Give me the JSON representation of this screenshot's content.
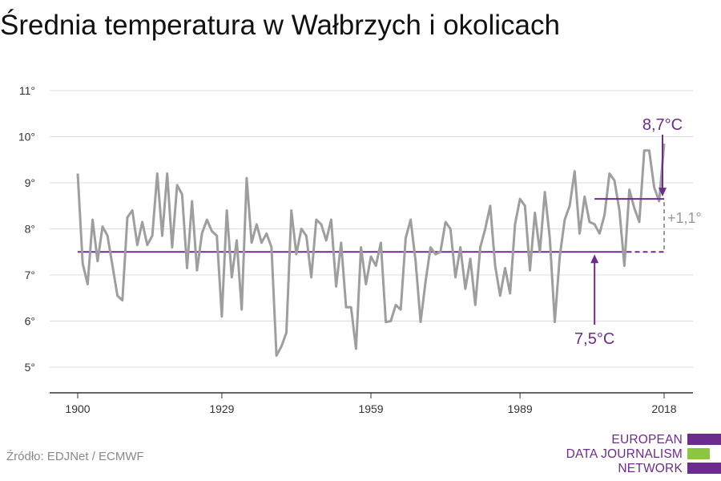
{
  "title": "Średnia temperatura w Wałbrzych i okolicach",
  "source": "Źródło: EDJNet / ECMWF",
  "logo": {
    "lines": [
      "EUROPEAN",
      "DATA JOURNALISM",
      "NETWORK"
    ],
    "colors": {
      "purple": "#6b2c8e",
      "green": "#8cc63f"
    }
  },
  "colors": {
    "series": "#9e9e9e",
    "accent": "#6b2c8e",
    "grid": "#dddddd",
    "axis": "#333333"
  },
  "chart_data": {
    "type": "line",
    "title": "Średnia temperatura w Wałbrzych i okolicach",
    "xlabel": "",
    "ylabel": "",
    "x_tick_labels": [
      "1900",
      "1929",
      "1959",
      "1989",
      "2018"
    ],
    "y_tick_labels": [
      "5°",
      "6°",
      "7°",
      "8°",
      "9°",
      "10°",
      "11°"
    ],
    "ylim": [
      4.5,
      11.3
    ],
    "xlim": [
      1900,
      2018
    ],
    "grid": true,
    "series": [
      {
        "x": [
          1900,
          1901,
          1902,
          1903,
          1904,
          1905,
          1906,
          1907,
          1908,
          1909,
          1910,
          1911,
          1912,
          1913,
          1914,
          1915,
          1916,
          1917,
          1918,
          1919,
          1920,
          1921,
          1922,
          1923,
          1924,
          1925,
          1926,
          1927,
          1928,
          1929,
          1930,
          1931,
          1932,
          1933,
          1934,
          1935,
          1936,
          1937,
          1938,
          1939,
          1940,
          1941,
          1942,
          1943,
          1944,
          1945,
          1946,
          1947,
          1948,
          1949,
          1950,
          1951,
          1952,
          1953,
          1954,
          1955,
          1956,
          1957,
          1958,
          1959,
          1960,
          1961,
          1962,
          1963,
          1964,
          1965,
          1966,
          1967,
          1968,
          1969,
          1970,
          1971,
          1972,
          1973,
          1974,
          1975,
          1976,
          1977,
          1978,
          1979,
          1980,
          1981,
          1982,
          1983,
          1984,
          1985,
          1986,
          1987,
          1988,
          1989,
          1990,
          1991,
          1992,
          1993,
          1994,
          1995,
          1996,
          1997,
          1998,
          1999,
          2000,
          2001,
          2002,
          2003,
          2004,
          2005,
          2006,
          2007,
          2008,
          2009,
          2010,
          2011,
          2012,
          2013,
          2014,
          2015,
          2016,
          2017,
          2018
        ],
        "values": [
          9.2,
          7.25,
          6.8,
          8.2,
          7.3,
          8.05,
          7.85,
          7.2,
          6.55,
          6.45,
          8.25,
          8.4,
          7.65,
          8.15,
          7.65,
          7.85,
          9.2,
          7.85,
          9.2,
          7.6,
          8.95,
          8.75,
          7.15,
          8.6,
          7.1,
          7.9,
          8.2,
          7.95,
          7.85,
          6.1,
          8.4,
          6.95,
          7.75,
          6.25,
          9.1,
          7.7,
          8.1,
          7.7,
          7.9,
          7.6,
          5.25,
          5.45,
          5.75,
          8.4,
          7.45,
          8.0,
          7.85,
          6.95,
          8.2,
          8.1,
          7.75,
          8.2,
          6.75,
          7.7,
          6.3,
          6.3,
          5.4,
          7.6,
          6.8,
          7.4,
          7.2,
          7.7,
          5.98,
          6.0,
          6.35,
          6.25,
          7.8,
          8.2,
          7.3,
          5.98,
          6.85,
          7.6,
          7.45,
          7.5,
          8.15,
          8.0,
          6.95,
          7.6,
          6.7,
          7.35,
          6.35,
          7.6,
          8.0,
          8.5,
          7.2,
          6.55,
          7.15,
          6.6,
          8.1,
          8.65,
          8.5,
          7.1,
          8.35,
          7.5,
          8.8,
          7.8,
          5.98,
          7.4,
          8.2,
          8.5,
          9.25,
          7.9,
          8.7,
          8.15,
          8.1,
          7.9,
          8.3,
          9.2,
          9.05,
          8.4,
          7.2,
          8.85,
          8.45,
          8.15,
          9.7,
          9.7,
          8.9,
          8.6,
          9.85
        ]
      }
    ],
    "annotations": {
      "baseline": {
        "label": "7,5°C",
        "value": 7.5
      },
      "recent": {
        "label": "8,7°C",
        "value": 8.65
      },
      "diff": {
        "label": "+1,1°"
      }
    }
  }
}
